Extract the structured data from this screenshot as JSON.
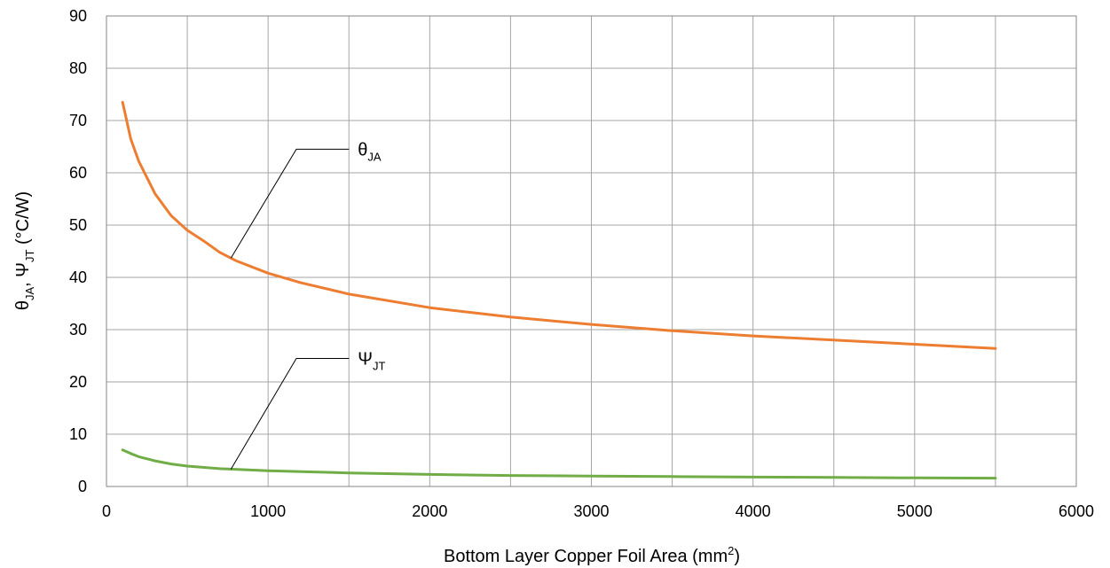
{
  "chart_data": {
    "type": "line",
    "xlabel": {
      "main": "Bottom Layer Copper Foil Area (mm",
      "sup": "2",
      "end": ")"
    },
    "ylabel": {
      "s1": "θ",
      "s1_sub": "JA",
      "sep": ", ",
      "s2": "Ψ",
      "s2_sub": "JT",
      "unit": " (°C/W)"
    },
    "xlim": [
      0,
      6000
    ],
    "ylim": [
      0,
      90
    ],
    "xticks": [
      0,
      1000,
      2000,
      3000,
      4000,
      5000,
      6000
    ],
    "yticks": [
      0,
      10,
      20,
      30,
      40,
      50,
      60,
      70,
      80,
      90
    ],
    "grid": true,
    "series": [
      {
        "base": "θ",
        "sub": "JA",
        "color": "#ED7D31",
        "points": [
          [
            100,
            73.5
          ],
          [
            150,
            66.5
          ],
          [
            200,
            62.2
          ],
          [
            300,
            56
          ],
          [
            400,
            51.8
          ],
          [
            500,
            49
          ],
          [
            600,
            47
          ],
          [
            700,
            44.8
          ],
          [
            800,
            43.2
          ],
          [
            1000,
            40.8
          ],
          [
            1200,
            39
          ],
          [
            1500,
            36.8
          ],
          [
            2000,
            34.2
          ],
          [
            2500,
            32.4
          ],
          [
            3000,
            31
          ],
          [
            3500,
            29.8
          ],
          [
            4000,
            28.8
          ],
          [
            4500,
            28
          ],
          [
            5000,
            27.2
          ],
          [
            5500,
            26.4
          ]
        ],
        "callout": {
          "at": [
            770,
            43.7
          ],
          "elbow": [
            1175,
            64.5
          ],
          "end": [
            1500,
            64.5
          ]
        }
      },
      {
        "base": "Ψ",
        "sub": "JT",
        "color": "#70AD47",
        "points": [
          [
            100,
            7
          ],
          [
            150,
            6.3
          ],
          [
            200,
            5.7
          ],
          [
            300,
            4.9
          ],
          [
            400,
            4.3
          ],
          [
            500,
            3.9
          ],
          [
            700,
            3.4
          ],
          [
            1000,
            3.0
          ],
          [
            1500,
            2.6
          ],
          [
            2000,
            2.3
          ],
          [
            2500,
            2.1
          ],
          [
            3000,
            2.0
          ],
          [
            3500,
            1.9
          ],
          [
            4000,
            1.8
          ],
          [
            4500,
            1.75
          ],
          [
            5000,
            1.65
          ],
          [
            5500,
            1.6
          ]
        ],
        "callout": {
          "at": [
            770,
            3.3
          ],
          "elbow": [
            1175,
            24.5
          ],
          "end": [
            1500,
            24.5
          ]
        }
      }
    ]
  }
}
